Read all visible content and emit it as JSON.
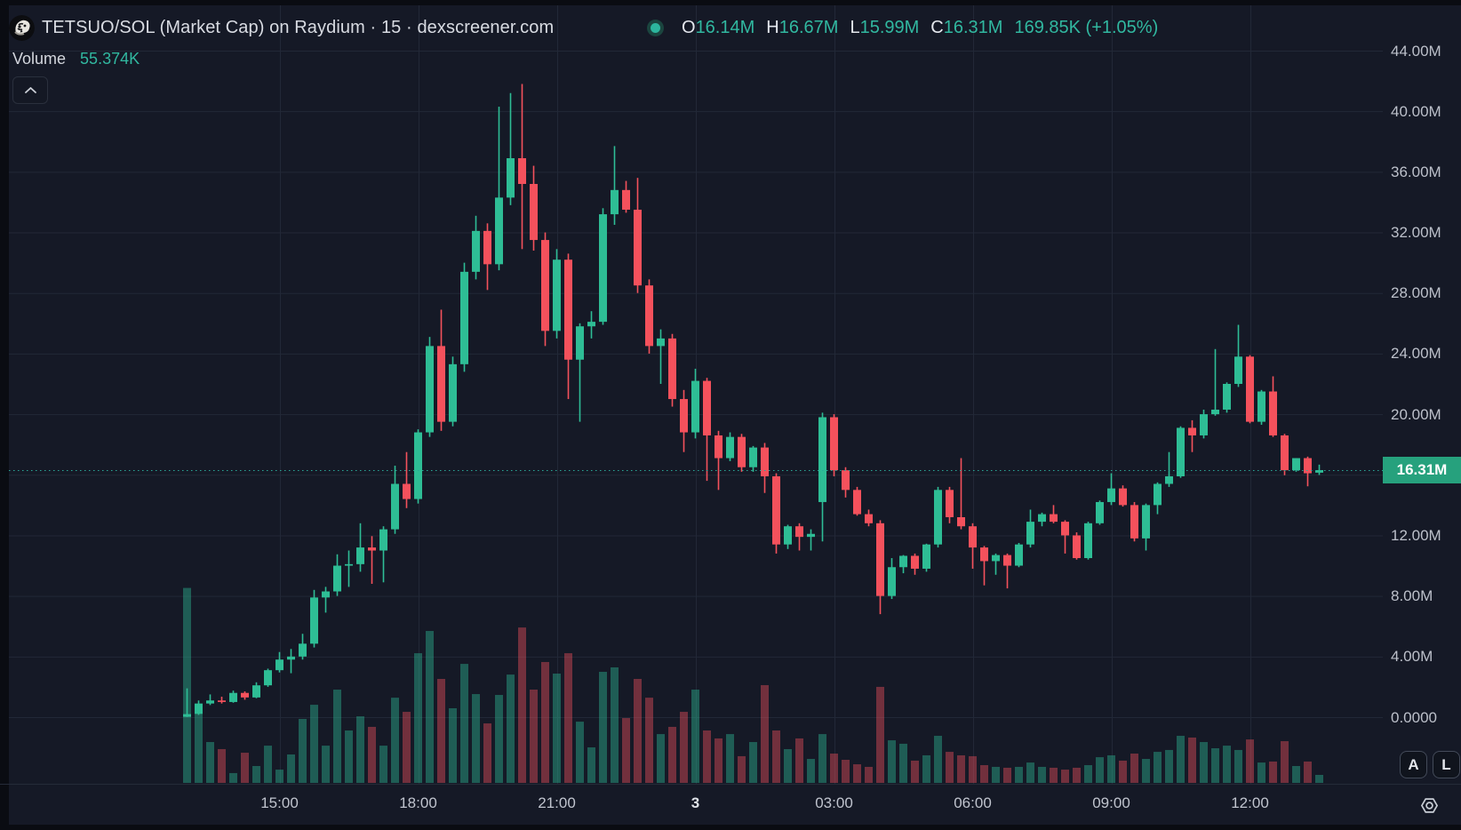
{
  "header": {
    "title": "TETSUO/SOL (Market Cap) on Raydium · 15 · dexscreener.com",
    "ohlc": {
      "o_label": "O",
      "o": "16.14M",
      "h_label": "H",
      "h": "16.67M",
      "l_label": "L",
      "l": "15.99M",
      "c_label": "C",
      "c": "16.31M",
      "change": "169.85K (+1.05%)"
    },
    "volume_label": "Volume",
    "volume_value": "55.374K"
  },
  "corner_buttons": {
    "auto_scale": "A",
    "log_scale": "L"
  },
  "price_axis": {
    "ticks": [
      {
        "value_m": 44,
        "label": "44.00M"
      },
      {
        "value_m": 40,
        "label": "40.00M"
      },
      {
        "value_m": 36,
        "label": "36.00M"
      },
      {
        "value_m": 32,
        "label": "32.00M"
      },
      {
        "value_m": 28,
        "label": "28.00M"
      },
      {
        "value_m": 24,
        "label": "24.00M"
      },
      {
        "value_m": 20,
        "label": "20.00M"
      },
      {
        "value_m": 16,
        "label": null
      },
      {
        "value_m": 12,
        "label": "12.00M"
      },
      {
        "value_m": 8,
        "label": "8.00M"
      },
      {
        "value_m": 4,
        "label": "4.00M"
      },
      {
        "value_m": 0,
        "label": "0.0000"
      }
    ],
    "price_badge": {
      "label": "16.31M",
      "value_m": 16.31
    }
  },
  "time_axis": {
    "labels": [
      {
        "index": 8,
        "text": "15:00",
        "day_boundary": false
      },
      {
        "index": 20,
        "text": "18:00",
        "day_boundary": false
      },
      {
        "index": 32,
        "text": "21:00",
        "day_boundary": false
      },
      {
        "index": 44,
        "text": "3",
        "day_boundary": true
      },
      {
        "index": 56,
        "text": "03:00",
        "day_boundary": false
      },
      {
        "index": 68,
        "text": "06:00",
        "day_boundary": false
      },
      {
        "index": 80,
        "text": "09:00",
        "day_boundary": false
      },
      {
        "index": 92,
        "text": "12:00",
        "day_boundary": false
      }
    ]
  },
  "colors": {
    "background": "#151926",
    "outer": "#0a0c12",
    "grid": "#222837",
    "up": "#2ebd95",
    "down": "#f4515c",
    "vol_up": "rgba(46,189,149,0.42)",
    "vol_down": "rgba(244,81,92,0.42)",
    "price_line": "#2aa998",
    "badge_bg": "#26a17d",
    "axis_text": "#bcc0ca"
  },
  "chart_data": {
    "type": "candlestick",
    "title": "TETSUO/SOL (Market Cap) on Raydium · 15 · dexscreener.com",
    "symbol": "TETSUO/SOL",
    "interval": "15m",
    "ylabel": "Market Cap",
    "y_range_millions": [
      0,
      44
    ],
    "grid": true,
    "last_price_line_m": 16.31,
    "ohlc_unit": "millions",
    "volume_unit": "thousands",
    "candles_ohlcv": [
      [
        0.02,
        1.9,
        0.01,
        0.2,
        1350
      ],
      [
        0.2,
        1.1,
        0.15,
        0.9,
        474
      ],
      [
        0.9,
        1.5,
        0.8,
        1.1,
        283
      ],
      [
        1.1,
        1.35,
        0.9,
        1.0,
        234
      ],
      [
        1.0,
        1.75,
        0.95,
        1.6,
        68
      ],
      [
        1.6,
        1.7,
        1.15,
        1.3,
        209
      ],
      [
        1.3,
        2.3,
        1.25,
        2.1,
        117
      ],
      [
        2.1,
        3.2,
        2.0,
        3.1,
        258
      ],
      [
        3.1,
        4.3,
        2.95,
        3.8,
        92
      ],
      [
        3.8,
        4.5,
        2.9,
        4.0,
        197
      ],
      [
        4.0,
        5.5,
        3.8,
        4.85,
        443
      ],
      [
        4.85,
        8.4,
        4.6,
        7.9,
        541
      ],
      [
        7.9,
        8.6,
        6.9,
        8.3,
        258
      ],
      [
        8.3,
        10.75,
        8.0,
        10.0,
        646
      ],
      [
        10.0,
        11.0,
        8.6,
        10.1,
        363
      ],
      [
        10.1,
        12.8,
        9.6,
        11.2,
        461
      ],
      [
        11.2,
        11.95,
        8.8,
        11.0,
        388
      ],
      [
        11.0,
        12.6,
        8.9,
        12.4,
        258
      ],
      [
        12.4,
        16.6,
        12.1,
        15.4,
        590
      ],
      [
        15.4,
        17.5,
        13.8,
        14.4,
        492
      ],
      [
        14.4,
        19.0,
        14.1,
        18.8,
        898
      ],
      [
        18.8,
        25.1,
        18.5,
        24.5,
        1052
      ],
      [
        24.5,
        26.9,
        18.9,
        19.5,
        720
      ],
      [
        19.5,
        23.8,
        19.2,
        23.3,
        517
      ],
      [
        23.3,
        30.0,
        22.8,
        29.4,
        824
      ],
      [
        29.4,
        33.1,
        28.9,
        32.1,
        615
      ],
      [
        32.1,
        32.6,
        28.2,
        29.9,
        412
      ],
      [
        29.9,
        40.3,
        29.5,
        34.3,
        609
      ],
      [
        34.3,
        41.2,
        33.8,
        36.9,
        750
      ],
      [
        36.9,
        41.8,
        30.9,
        35.2,
        1076
      ],
      [
        35.2,
        36.4,
        30.8,
        31.5,
        646
      ],
      [
        31.5,
        32.0,
        24.5,
        25.5,
        837
      ],
      [
        25.5,
        30.9,
        25.0,
        30.2,
        757
      ],
      [
        30.2,
        30.6,
        21.0,
        23.6,
        898
      ],
      [
        23.6,
        26.0,
        19.5,
        25.8,
        424
      ],
      [
        25.8,
        26.8,
        25.0,
        26.1,
        246
      ],
      [
        26.1,
        33.6,
        25.9,
        33.2,
        769
      ],
      [
        33.2,
        37.7,
        32.5,
        34.8,
        800
      ],
      [
        34.8,
        35.4,
        33.3,
        33.5,
        449
      ],
      [
        33.5,
        35.6,
        28.0,
        28.5,
        720
      ],
      [
        28.5,
        28.9,
        24.0,
        24.5,
        590
      ],
      [
        24.5,
        25.6,
        22.0,
        25.0,
        338
      ],
      [
        25.0,
        25.3,
        20.5,
        21.0,
        388
      ],
      [
        21.0,
        21.6,
        17.5,
        18.8,
        492
      ],
      [
        18.8,
        23.0,
        18.4,
        22.2,
        646
      ],
      [
        22.2,
        22.4,
        15.6,
        18.6,
        363
      ],
      [
        18.6,
        18.9,
        15.0,
        17.1,
        308
      ],
      [
        17.1,
        18.8,
        16.9,
        18.5,
        338
      ],
      [
        18.5,
        18.7,
        16.2,
        16.5,
        185
      ],
      [
        16.5,
        17.9,
        16.2,
        17.8,
        283
      ],
      [
        17.8,
        18.1,
        14.8,
        15.9,
        677
      ],
      [
        15.9,
        16.1,
        10.8,
        11.4,
        363
      ],
      [
        11.4,
        12.7,
        11.1,
        12.6,
        234
      ],
      [
        12.6,
        12.8,
        11.0,
        11.9,
        308
      ],
      [
        11.9,
        12.4,
        11.0,
        12.1,
        166
      ],
      [
        14.2,
        20.1,
        11.6,
        19.8,
        338
      ],
      [
        19.8,
        20.0,
        15.9,
        16.3,
        203
      ],
      [
        16.3,
        16.5,
        14.5,
        15.0,
        160
      ],
      [
        15.0,
        15.2,
        13.3,
        13.4,
        129
      ],
      [
        13.4,
        13.7,
        12.6,
        12.8,
        111
      ],
      [
        12.8,
        13.0,
        6.8,
        8.0,
        665
      ],
      [
        8.0,
        10.5,
        7.8,
        9.9,
        295
      ],
      [
        9.9,
        10.7,
        9.5,
        10.65,
        271
      ],
      [
        10.65,
        10.8,
        9.4,
        9.8,
        154
      ],
      [
        9.8,
        11.45,
        9.6,
        11.4,
        191
      ],
      [
        11.4,
        15.2,
        11.2,
        15.0,
        326
      ],
      [
        15.0,
        15.2,
        12.8,
        13.2,
        215
      ],
      [
        13.2,
        17.1,
        12.4,
        12.6,
        191
      ],
      [
        12.6,
        12.8,
        9.8,
        11.2,
        185
      ],
      [
        11.2,
        11.3,
        8.7,
        10.3,
        123
      ],
      [
        10.3,
        10.8,
        9.4,
        10.7,
        111
      ],
      [
        10.7,
        10.8,
        8.5,
        10.0,
        105
      ],
      [
        10.0,
        11.5,
        9.9,
        11.4,
        111
      ],
      [
        11.4,
        13.7,
        11.2,
        12.9,
        141
      ],
      [
        12.9,
        13.5,
        12.6,
        13.4,
        111
      ],
      [
        13.4,
        14.0,
        12.8,
        12.9,
        105
      ],
      [
        12.9,
        13.0,
        10.8,
        12.0,
        92
      ],
      [
        12.0,
        12.2,
        10.4,
        10.5,
        105
      ],
      [
        10.5,
        12.9,
        10.4,
        12.8,
        123
      ],
      [
        12.8,
        14.3,
        12.7,
        14.2,
        178
      ],
      [
        14.2,
        16.1,
        14.0,
        15.1,
        191
      ],
      [
        15.1,
        15.3,
        13.9,
        14.0,
        154
      ],
      [
        14.0,
        14.2,
        11.6,
        11.8,
        203
      ],
      [
        11.8,
        14.1,
        11.0,
        14.0,
        166
      ],
      [
        14.0,
        15.5,
        13.4,
        15.4,
        215
      ],
      [
        15.4,
        17.5,
        15.2,
        15.9,
        228
      ],
      [
        15.9,
        19.2,
        15.8,
        19.1,
        326
      ],
      [
        19.1,
        19.6,
        17.5,
        18.6,
        314
      ],
      [
        18.6,
        20.3,
        18.4,
        20.0,
        283
      ],
      [
        20.0,
        24.3,
        19.9,
        20.3,
        240
      ],
      [
        20.3,
        22.1,
        20.1,
        22.0,
        258
      ],
      [
        22.0,
        25.9,
        21.8,
        23.8,
        228
      ],
      [
        23.8,
        23.9,
        19.4,
        19.5,
        301
      ],
      [
        19.5,
        21.6,
        19.3,
        21.5,
        141
      ],
      [
        21.5,
        22.5,
        18.5,
        18.6,
        148
      ],
      [
        18.6,
        18.7,
        15.97,
        16.3,
        289
      ],
      [
        16.3,
        17.1,
        16.2,
        17.1,
        117
      ],
      [
        17.1,
        17.2,
        15.24,
        16.1,
        148
      ],
      [
        16.14,
        16.67,
        15.99,
        16.31,
        55.374
      ]
    ]
  }
}
